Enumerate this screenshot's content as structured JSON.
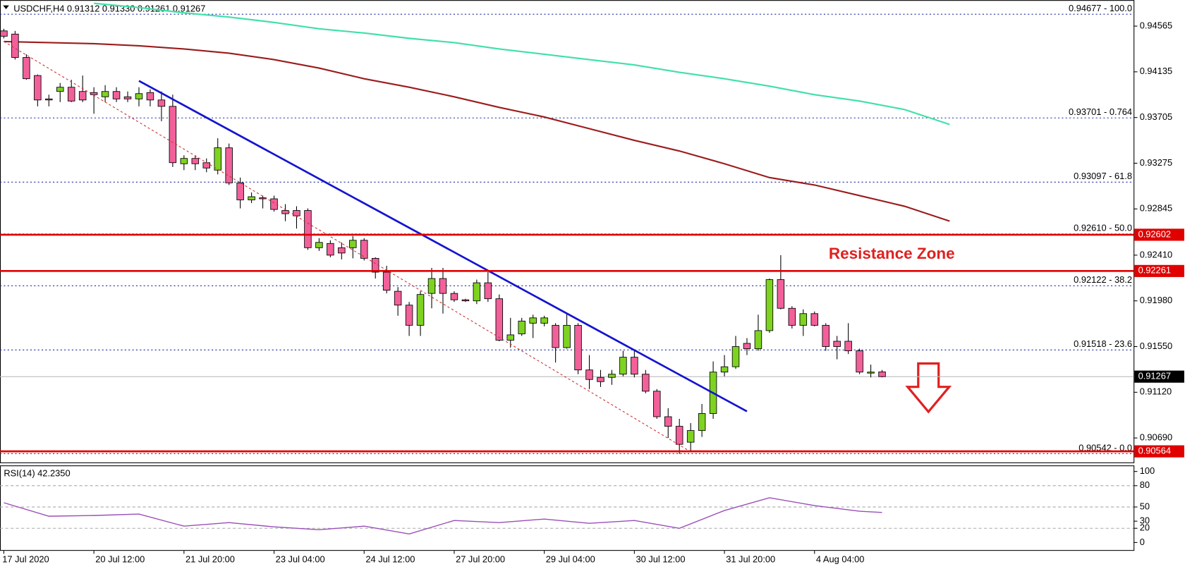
{
  "chart_data": [
    {
      "type": "candlestick",
      "title": "USDCHF,H4  0.91312 0.91330 0.91261 0.91267",
      "annotation": "Resistance Zone",
      "xlim": [
        -0.34,
        100.34
      ],
      "xticks": [
        {
          "value": 0,
          "label": "17 Jul 2020"
        },
        {
          "value": 8,
          "label": "20 Jul 12:00"
        },
        {
          "value": 16,
          "label": "21 Jul 20:00"
        },
        {
          "value": 24,
          "label": "23 Jul 04:00"
        },
        {
          "value": 32,
          "label": "24 Jul 12:00"
        },
        {
          "value": 40,
          "label": "27 Jul 20:00"
        },
        {
          "value": 48,
          "label": "29 Jul 04:00"
        },
        {
          "value": 56,
          "label": "30 Jul 12:00"
        },
        {
          "value": 64,
          "label": "31 Jul 20:00"
        },
        {
          "value": 72,
          "label": "4 Aug 04:00"
        }
      ],
      "ylim": [
        0.9046,
        0.9481
      ],
      "yticks": [
        0.94565,
        0.94135,
        0.93705,
        0.93275,
        0.92845,
        {
          "value": 0.9241,
          "label": "0.92410"
        },
        {
          "value": 0.9198,
          "label": "0.91980"
        },
        {
          "value": 0.9155,
          "label": "0.91550"
        },
        {
          "value": 0.9112,
          "label": "0.91120"
        },
        {
          "value": 0.9069,
          "label": "0.90690"
        }
      ],
      "up_color": "#7ed321",
      "down_color": "#f2609a",
      "candles": [
        [
          0.9452,
          0.9454,
          0.9445,
          0.9447
        ],
        [
          0.9449,
          0.9452,
          0.9425,
          0.9427
        ],
        [
          0.9427,
          0.943,
          0.9406,
          0.9407
        ],
        [
          0.941,
          0.9411,
          0.9381,
          0.9387
        ],
        [
          0.9388,
          0.9392,
          0.9381,
          0.9387
        ],
        [
          0.9395,
          0.9403,
          0.9385,
          0.9399
        ],
        [
          0.9399,
          0.9406,
          0.9385,
          0.9386
        ],
        [
          0.9395,
          0.941,
          0.9385,
          0.9387
        ],
        [
          0.9394,
          0.9399,
          0.9374,
          0.9392
        ],
        [
          0.939,
          0.9401,
          0.9385,
          0.9395
        ],
        [
          0.9395,
          0.9399,
          0.9385,
          0.9388
        ],
        [
          0.939,
          0.9395,
          0.9385,
          0.9388
        ],
        [
          0.9388,
          0.9399,
          0.9381,
          0.9393
        ],
        [
          0.9394,
          0.9397,
          0.9381,
          0.9387
        ],
        [
          0.9387,
          0.9395,
          0.9367,
          0.9381
        ],
        [
          0.9381,
          0.9392,
          0.9324,
          0.9328
        ],
        [
          0.9327,
          0.9335,
          0.9321,
          0.9332
        ],
        [
          0.9332,
          0.9335,
          0.9321,
          0.9327
        ],
        [
          0.9328,
          0.9332,
          0.9319,
          0.9323
        ],
        [
          0.9321,
          0.9351,
          0.9317,
          0.9342
        ],
        [
          0.9342,
          0.9346,
          0.9307,
          0.9309
        ],
        [
          0.9309,
          0.9314,
          0.9285,
          0.9293
        ],
        [
          0.9293,
          0.93,
          0.929,
          0.9296
        ],
        [
          0.9295,
          0.9297,
          0.9285,
          0.9294
        ],
        [
          0.9294,
          0.9297,
          0.9282,
          0.9284
        ],
        [
          0.9283,
          0.9289,
          0.9273,
          0.928
        ],
        [
          0.9283,
          0.9287,
          0.9266,
          0.9278
        ],
        [
          0.9283,
          0.9285,
          0.9246,
          0.9248
        ],
        [
          0.9248,
          0.9257,
          0.9245,
          0.9253
        ],
        [
          0.9252,
          0.9255,
          0.9239,
          0.9241
        ],
        [
          0.9248,
          0.9253,
          0.9237,
          0.9243
        ],
        [
          0.9248,
          0.9259,
          0.9238,
          0.9255
        ],
        [
          0.9255,
          0.9257,
          0.9236,
          0.9238
        ],
        [
          0.9238,
          0.9239,
          0.9219,
          0.9225
        ],
        [
          0.9225,
          0.9231,
          0.9205,
          0.9208
        ],
        [
          0.9207,
          0.9211,
          0.9184,
          0.9194
        ],
        [
          0.9194,
          0.9197,
          0.9165,
          0.9175
        ],
        [
          0.9175,
          0.9207,
          0.9165,
          0.9204
        ],
        [
          0.9205,
          0.9229,
          0.9191,
          0.9219
        ],
        [
          0.9219,
          0.9229,
          0.9186,
          0.9205
        ],
        [
          0.9205,
          0.9207,
          0.9197,
          0.9199
        ],
        [
          0.9199,
          0.92,
          0.9197,
          0.9198
        ],
        [
          0.9198,
          0.9218,
          0.9195,
          0.9215
        ],
        [
          0.9215,
          0.9225,
          0.9197,
          0.92
        ],
        [
          0.92,
          0.9204,
          0.916,
          0.9161
        ],
        [
          0.9161,
          0.9182,
          0.9154,
          0.9166
        ],
        [
          0.9167,
          0.9182,
          0.9165,
          0.9179
        ],
        [
          0.9177,
          0.9185,
          0.9163,
          0.9182
        ],
        [
          0.9177,
          0.9184,
          0.9174,
          0.9182
        ],
        [
          0.9175,
          0.9177,
          0.914,
          0.9154
        ],
        [
          0.9154,
          0.9186,
          0.9153,
          0.9175
        ],
        [
          0.9175,
          0.9177,
          0.9129,
          0.9133
        ],
        [
          0.9133,
          0.9147,
          0.9115,
          0.9124
        ],
        [
          0.9126,
          0.9133,
          0.9117,
          0.9122
        ],
        [
          0.9126,
          0.9133,
          0.9119,
          0.9129
        ],
        [
          0.9129,
          0.9151,
          0.9127,
          0.9145
        ],
        [
          0.9145,
          0.9151,
          0.9126,
          0.9129
        ],
        [
          0.9129,
          0.9133,
          0.9111,
          0.9113
        ],
        [
          0.9113,
          0.9115,
          0.9087,
          0.9089
        ],
        [
          0.9089,
          0.9097,
          0.9069,
          0.908
        ],
        [
          0.908,
          0.9087,
          0.9054,
          0.9063
        ],
        [
          0.9065,
          0.9083,
          0.9057,
          0.9076
        ],
        [
          0.9076,
          0.9101,
          0.907,
          0.9092
        ],
        [
          0.9092,
          0.9141,
          0.9087,
          0.9131
        ],
        [
          0.9131,
          0.9147,
          0.9127,
          0.9136
        ],
        [
          0.9136,
          0.9165,
          0.9134,
          0.9155
        ],
        [
          0.9158,
          0.9163,
          0.9147,
          0.9153
        ],
        [
          0.9153,
          0.9185,
          0.9151,
          0.917
        ],
        [
          0.917,
          0.9219,
          0.9168,
          0.9218
        ],
        [
          0.9218,
          0.9241,
          0.919,
          0.9191
        ],
        [
          0.9191,
          0.9193,
          0.9172,
          0.9175
        ],
        [
          0.9175,
          0.919,
          0.9165,
          0.9186
        ],
        [
          0.9186,
          0.9188,
          0.9174,
          0.9175
        ],
        [
          0.9175,
          0.9177,
          0.9151,
          0.9155
        ],
        [
          0.916,
          0.9165,
          0.9143,
          0.9155
        ],
        [
          0.916,
          0.9177,
          0.9148,
          0.9151
        ],
        [
          0.9151,
          0.9153,
          0.9129,
          0.9131
        ],
        [
          0.913,
          0.9138,
          0.9126,
          0.9131
        ],
        [
          0.91312,
          0.9133,
          0.91261,
          0.91267
        ]
      ],
      "series": [
        {
          "color": "#3fe0a8",
          "x": [
            8,
            12,
            16,
            20,
            24,
            28,
            32,
            36,
            40,
            44,
            48,
            52,
            56,
            60,
            64,
            68,
            72,
            76,
            80,
            84
          ],
          "values": [
            0.9478,
            0.9474,
            0.9469,
            0.9465,
            0.946,
            0.9454,
            0.945,
            0.9445,
            0.9441,
            0.9435,
            0.943,
            0.9425,
            0.942,
            0.9413,
            0.9407,
            0.94,
            0.9392,
            0.9386,
            0.9378,
            0.9364
          ]
        },
        {
          "color": "#9b1c1c",
          "x": [
            0,
            4,
            8,
            12,
            16,
            20,
            24,
            28,
            32,
            36,
            40,
            44,
            48,
            52,
            56,
            60,
            64,
            68,
            72,
            76,
            80,
            84
          ],
          "values": [
            0.9442,
            0.9441,
            0.944,
            0.9438,
            0.9435,
            0.9431,
            0.9425,
            0.9417,
            0.9407,
            0.9399,
            0.939,
            0.938,
            0.9371,
            0.936,
            0.9349,
            0.9339,
            0.9327,
            0.9314,
            0.9307,
            0.9297,
            0.9287,
            0.9273
          ]
        }
      ],
      "trendlines": [
        {
          "color": "#1414d0",
          "dashed": false,
          "x": [
            12,
            66
          ],
          "values": [
            0.9405,
            0.9094
          ]
        },
        {
          "color": "#c83030",
          "dashed": true,
          "x": [
            0,
            61
          ],
          "values": [
            0.9442,
            0.9056
          ]
        }
      ],
      "fib_color": "#1f2fa0",
      "fib_levels": [
        {
          "value": 0.94677,
          "label": "0.94677 - 100.0"
        },
        {
          "value": 0.93701,
          "label": "0.93701 - 0.764"
        },
        {
          "value": 0.93097,
          "label": "0.93097 - 61.8"
        },
        {
          "value": 0.9261,
          "label": "0.92610 - 50.0"
        },
        {
          "value": 0.92122,
          "label": "0.92122 - 38.2"
        },
        {
          "value": 0.91518,
          "label": "0.91518 - 23.6"
        },
        {
          "value": 0.90542,
          "label": "0.90542 - 0.0"
        }
      ],
      "hline_color": "#e00000",
      "hlines": [
        0.92602,
        0.92261,
        0.90564
      ]
    },
    {
      "type": "line",
      "title": "RSI(14) 42.2350",
      "color": "#9a4fb8",
      "x": [
        0,
        4,
        8,
        12,
        16,
        20,
        24,
        28,
        32,
        36,
        40,
        44,
        48,
        52,
        56,
        60,
        64,
        68,
        72,
        76,
        78
      ],
      "values": [
        56,
        37,
        38,
        40,
        23,
        28,
        22,
        18,
        23,
        12,
        31,
        28,
        33,
        27,
        31,
        20,
        45,
        63,
        52,
        44,
        42.235
      ],
      "ylim": [
        0,
        100
      ],
      "yticks": [
        100,
        80,
        50,
        30,
        20,
        0
      ],
      "levels": [
        80,
        50,
        20
      ]
    }
  ]
}
